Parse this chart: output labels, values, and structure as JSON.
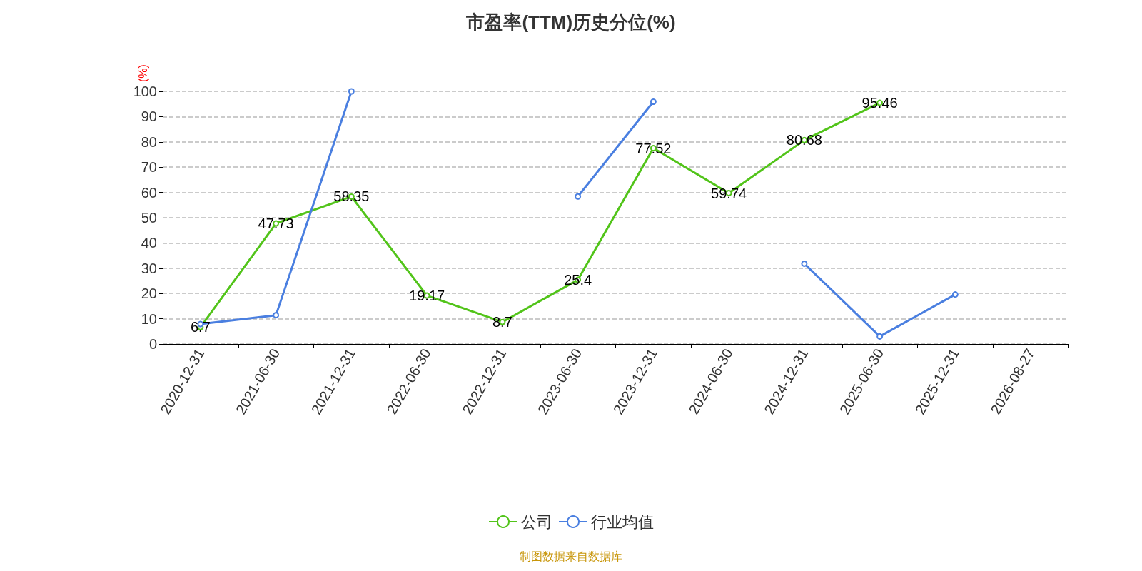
{
  "chart_data": {
    "type": "line",
    "title": "市盈率(TTM)历史分位(%)",
    "ylabel": "(%)",
    "categories": [
      "2020-12-31",
      "2021-06-30",
      "2021-12-31",
      "2022-06-30",
      "2022-12-31",
      "2023-06-30",
      "2023-12-31",
      "2024-06-30",
      "2024-12-31",
      "2025-06-30",
      "2025-12-31",
      "2026-08-27"
    ],
    "series": [
      {
        "name": "公司",
        "color": "#52c41a",
        "values": [
          6.7,
          47.73,
          58.35,
          19.17,
          8.7,
          25.4,
          77.52,
          59.74,
          80.68,
          95.46,
          null,
          null
        ],
        "value_labels": [
          "6.7",
          "47.73",
          "58.35",
          "19.17",
          "8.7",
          "25.4",
          "77.52",
          "59.74",
          "80.68",
          "95.46",
          null,
          null
        ]
      },
      {
        "name": "行业均值",
        "color": "#4a7fe0",
        "values": [
          7.9,
          11.4,
          100,
          null,
          null,
          58.4,
          95.9,
          null,
          31.8,
          3,
          19.6,
          null
        ]
      }
    ],
    "ylim": [
      0,
      100
    ],
    "yticks": [
      0,
      10,
      20,
      30,
      40,
      50,
      60,
      70,
      80,
      90,
      100
    ],
    "grid": "y",
    "legend": "bottom",
    "marker": "circle",
    "line_style": "solid",
    "annotations": [
      "制图数据来自数据库"
    ]
  }
}
